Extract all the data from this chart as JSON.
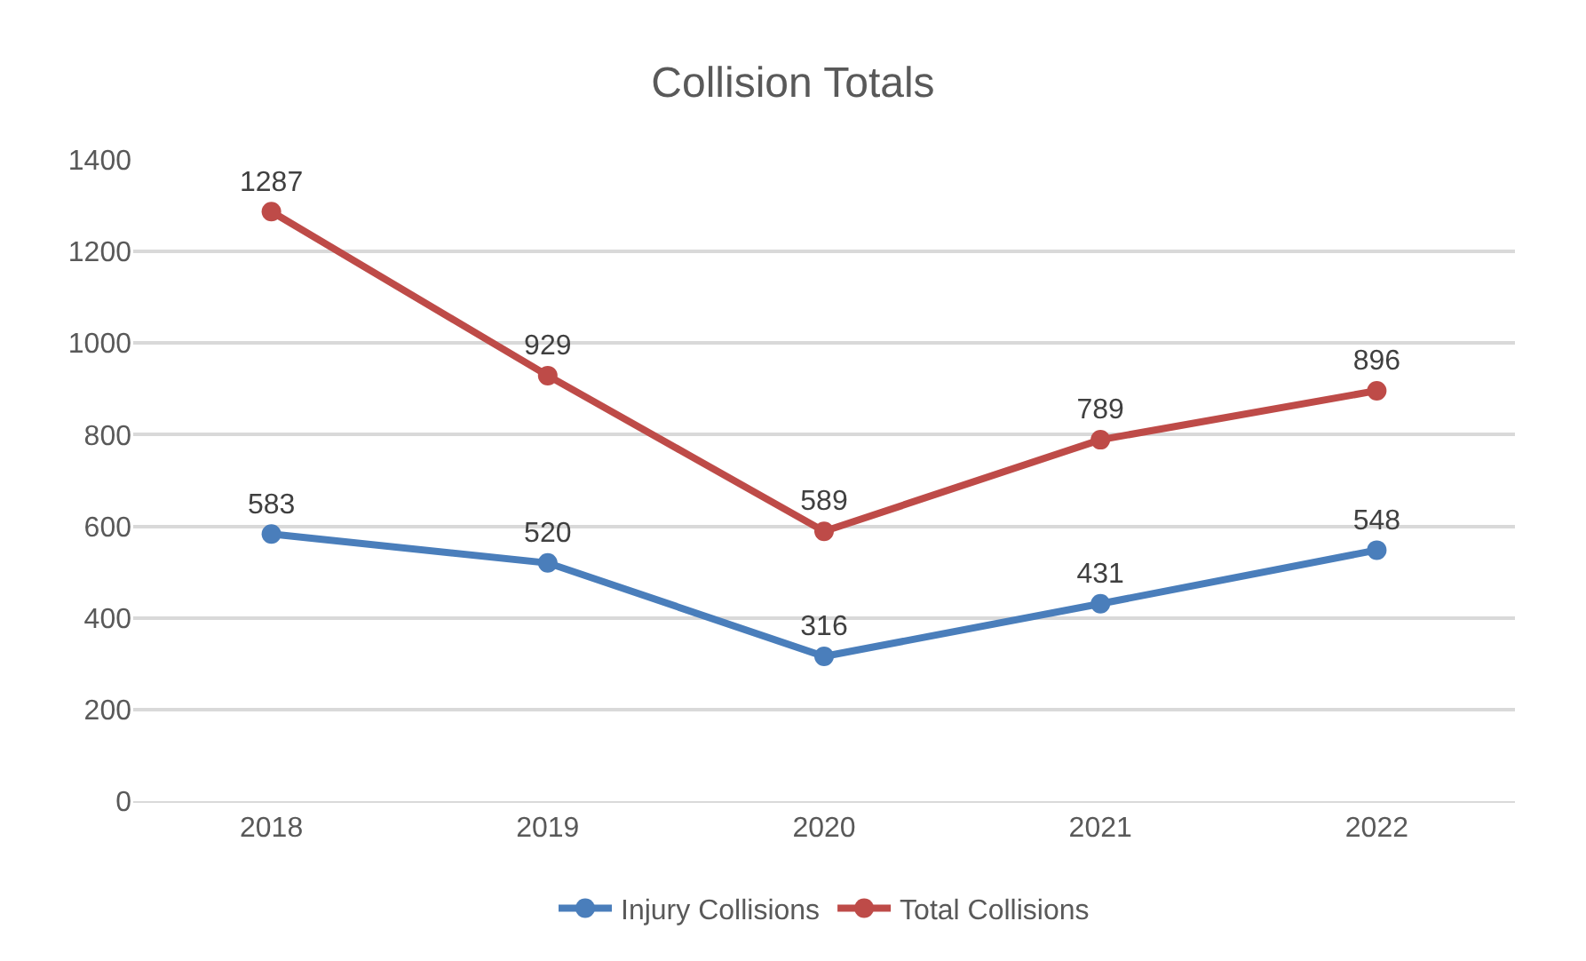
{
  "chart_data": {
    "type": "line",
    "title": "Collision Totals",
    "categories": [
      "2018",
      "2019",
      "2020",
      "2021",
      "2022"
    ],
    "series": [
      {
        "name": "Injury Collisions",
        "color": "#4a7ebb",
        "values": [
          583,
          520,
          316,
          431,
          548
        ]
      },
      {
        "name": "Total Collisions",
        "color": "#be4b48",
        "values": [
          1287,
          929,
          589,
          789,
          896
        ]
      }
    ],
    "ylim": [
      0,
      1400
    ],
    "yticks": [
      0,
      200,
      400,
      600,
      800,
      1000,
      1200,
      1400
    ],
    "grid": "y",
    "legend": "bottom",
    "marker": "circle",
    "line_style": "solid",
    "data_labels": true
  }
}
